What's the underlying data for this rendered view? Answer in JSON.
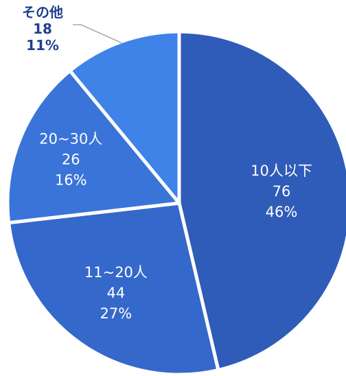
{
  "chart_data": {
    "type": "pie",
    "slices": [
      {
        "label": "10人以下",
        "value": 76,
        "percent": "46%",
        "color": "#2f5cb8"
      },
      {
        "label": "11~20人",
        "value": 44,
        "percent": "27%",
        "color": "#3568cb"
      },
      {
        "label": "20~30人",
        "value": 26,
        "percent": "16%",
        "color": "#3a74d9"
      },
      {
        "label": "その他",
        "value": 18,
        "percent": "11%",
        "color": "#3f82e8"
      }
    ],
    "start": "12 o'clock",
    "direction": "clockwise",
    "label_text_color": "#ffffff",
    "outside_label_color": "#1f3f8f",
    "separator_color": "#ffffff"
  }
}
